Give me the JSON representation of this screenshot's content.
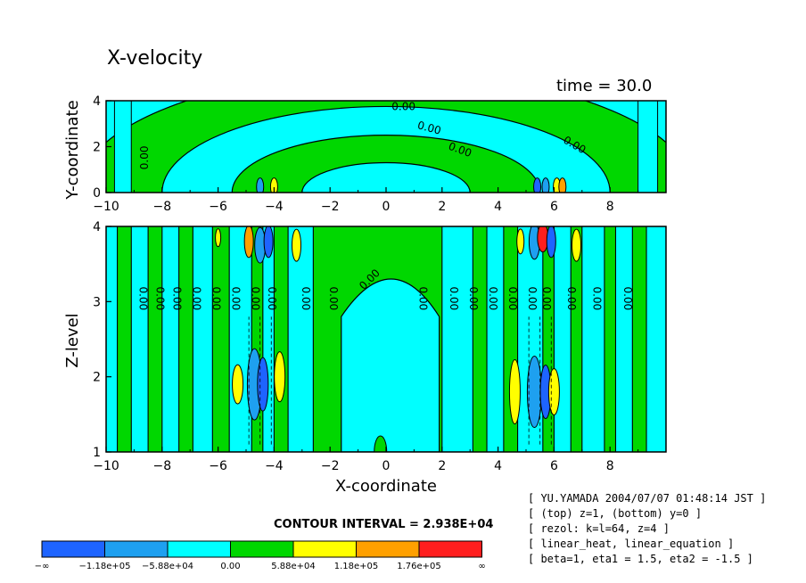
{
  "title": "X-velocity",
  "time_label": "time = 30.0",
  "colors": {
    "neg_inf": "#1e64ff",
    "neg2": "#1ea0f0",
    "neg1": "#00ffff",
    "pos1": "#00d700",
    "pos2": "#ffff00",
    "pos3": "#ffa000",
    "pos4": "#ff1e1e",
    "line": "#000000"
  },
  "chart_data": [
    {
      "type": "contour",
      "panel": "top",
      "ylabel": "Y-coordinate",
      "xlim": [
        -10,
        10
      ],
      "ylim": [
        0,
        4
      ],
      "x_ticks": [
        "-10",
        "-8",
        "-6",
        "-4",
        "-2",
        "0",
        "2",
        "4",
        "6",
        "8"
      ],
      "y_ticks": [
        "0",
        "2",
        "4"
      ],
      "contour_labels": [
        "0.00",
        "0.00",
        "0.00",
        "0.00",
        "0.00"
      ],
      "contour_interval": 29380
    },
    {
      "type": "contour",
      "panel": "bottom",
      "xlabel": "X-coordinate",
      "ylabel": "Z-level",
      "xlim": [
        -10,
        10
      ],
      "ylim": [
        1,
        4
      ],
      "x_ticks": [
        "-10",
        "-8",
        "-6",
        "-4",
        "-2",
        "0",
        "2",
        "4",
        "6",
        "8"
      ],
      "y_ticks": [
        "1",
        "2",
        "3",
        "4"
      ],
      "contour_labels": [
        "0.00",
        "0.00",
        "0.00",
        "0.00",
        "0.00",
        "0.00",
        "0.00",
        "0.00",
        "0.00",
        "0.00",
        "0.00",
        "0.00",
        "0.00",
        "0.00",
        "0.00",
        "0.00",
        "0.00",
        "0.00",
        "0.00",
        "0.00",
        "0.00"
      ],
      "contour_interval": 29380
    }
  ],
  "contour_interval_text": "CONTOUR INTERVAL = 2.938E+04",
  "colorbar": {
    "labels": [
      "-∞",
      "-1.18e+05",
      "-5.88e+04",
      "0.00",
      "5.88e+04",
      "1.18e+05",
      "1.76e+05",
      "∞"
    ]
  },
  "info_lines": [
    "[ YU.YAMADA 2004/07/07 01:48:14 JST ]",
    "[ (top) z=1, (bottom) y=0 ]",
    "[ rezol: k=l=64, z=4 ]",
    "[ linear_heat, linear_equation ]",
    "[ beta=1, eta1 = 1.5, eta2 = -1.5 ]"
  ]
}
